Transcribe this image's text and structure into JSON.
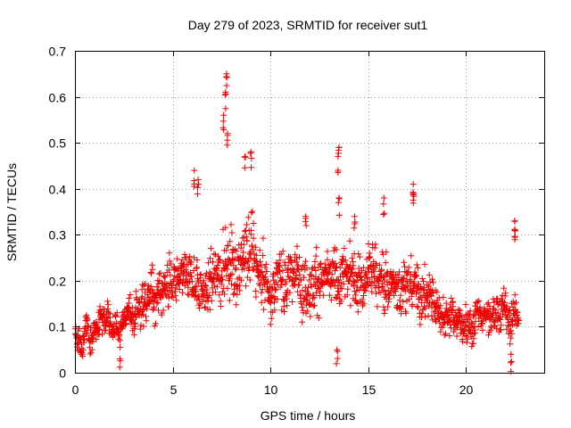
{
  "chart_data": {
    "type": "scatter",
    "title": "Day 279 of 2023, SRMTID for receiver sut1",
    "xlabel": "GPS time / hours",
    "ylabel": "SRMTID / TECUs",
    "xlim": [
      0,
      24
    ],
    "ylim": [
      0,
      0.7
    ],
    "xticks": [
      0,
      5,
      10,
      15,
      20
    ],
    "xtick_labels": [
      "0",
      "5",
      "10",
      "15",
      "20"
    ],
    "yticks": [
      0,
      0.1,
      0.2,
      0.3,
      0.4,
      0.5,
      0.6,
      0.7
    ],
    "ytick_labels": [
      "0",
      "0.1",
      "0.2",
      "0.3",
      "0.4",
      "0.5",
      "0.6",
      "0.7"
    ],
    "grid": true,
    "marker": "plus",
    "color": "#ee0000",
    "series": [
      {
        "name": "SRMTID",
        "trend": {
          "x": [
            0,
            1,
            2,
            3,
            4,
            5,
            6,
            7,
            7.7,
            8.5,
            9,
            10,
            11,
            12,
            13,
            14,
            15,
            16,
            17,
            18,
            19,
            20,
            21,
            22,
            22.7
          ],
          "y": [
            0.09,
            0.1,
            0.11,
            0.12,
            0.17,
            0.17,
            0.19,
            0.18,
            0.24,
            0.27,
            0.25,
            0.19,
            0.21,
            0.21,
            0.19,
            0.19,
            0.22,
            0.19,
            0.2,
            0.17,
            0.13,
            0.12,
            0.11,
            0.14,
            0.1
          ]
        },
        "peaks": [
          {
            "x": 7.75,
            "y": 0.65
          },
          {
            "x": 7.7,
            "y": 0.61
          },
          {
            "x": 7.6,
            "y": 0.56
          },
          {
            "x": 7.8,
            "y": 0.52
          },
          {
            "x": 6.1,
            "y": 0.44
          },
          {
            "x": 6.3,
            "y": 0.42
          },
          {
            "x": 8.7,
            "y": 0.47
          },
          {
            "x": 9.0,
            "y": 0.48
          },
          {
            "x": 13.5,
            "y": 0.49
          },
          {
            "x": 13.45,
            "y": 0.47
          },
          {
            "x": 13.5,
            "y": 0.38
          },
          {
            "x": 15.8,
            "y": 0.38
          },
          {
            "x": 17.3,
            "y": 0.41
          },
          {
            "x": 17.3,
            "y": 0.39
          },
          {
            "x": 22.5,
            "y": 0.33
          },
          {
            "x": 22.5,
            "y": 0.31
          },
          {
            "x": 11.8,
            "y": 0.34
          },
          {
            "x": 14.3,
            "y": 0.34
          },
          {
            "x": 13.4,
            "y": 0.05
          },
          {
            "x": 2.3,
            "y": 0.03
          },
          {
            "x": 22.3,
            "y": 0.04
          }
        ]
      }
    ]
  }
}
